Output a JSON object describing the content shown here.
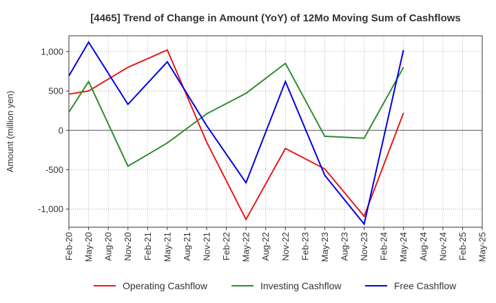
{
  "chart_data": {
    "type": "line",
    "title": "[4465]  Trend of Change in Amount (YoY) of 12Mo Moving Sum of Cashflows",
    "xlabel": "",
    "ylabel": "Amount (million yen)",
    "ylim": [
      -1230,
      1200
    ],
    "yticks": [
      1000,
      500,
      0,
      -500,
      -1000
    ],
    "ytick_labels": [
      "1,000",
      "500",
      "0",
      "-500",
      "-1,000"
    ],
    "grid": true,
    "legend_position": "bottom",
    "categories": [
      "Feb-20",
      "May-20",
      "Aug-20",
      "Nov-20",
      "Feb-21",
      "May-21",
      "Aug-21",
      "Nov-21",
      "Feb-22",
      "May-22",
      "Aug-22",
      "Nov-22",
      "Feb-23",
      "May-23",
      "Aug-23",
      "Nov-23",
      "Feb-24",
      "May-24",
      "Aug-24",
      "Nov-24",
      "Feb-25",
      "May-25"
    ],
    "series": [
      {
        "name": "Operating Cashflow",
        "color": "#e41a1c",
        "values": [
          460,
          500,
          null,
          800,
          null,
          1020,
          null,
          -150,
          null,
          -1130,
          null,
          -230,
          null,
          -490,
          null,
          -1090,
          null,
          220,
          null,
          null,
          null,
          null
        ]
      },
      {
        "name": "Investing Cashflow",
        "color": "#2e8b2e",
        "values": [
          230,
          620,
          null,
          -455,
          null,
          -160,
          null,
          210,
          null,
          470,
          null,
          850,
          null,
          -75,
          null,
          -100,
          null,
          800,
          null,
          null,
          null,
          null
        ]
      },
      {
        "name": "Free Cashflow",
        "color": "#0000dd",
        "values": [
          690,
          1120,
          null,
          330,
          null,
          870,
          null,
          60,
          null,
          -665,
          null,
          620,
          null,
          -570,
          null,
          -1190,
          null,
          1020,
          null,
          null,
          null,
          null
        ]
      }
    ]
  }
}
